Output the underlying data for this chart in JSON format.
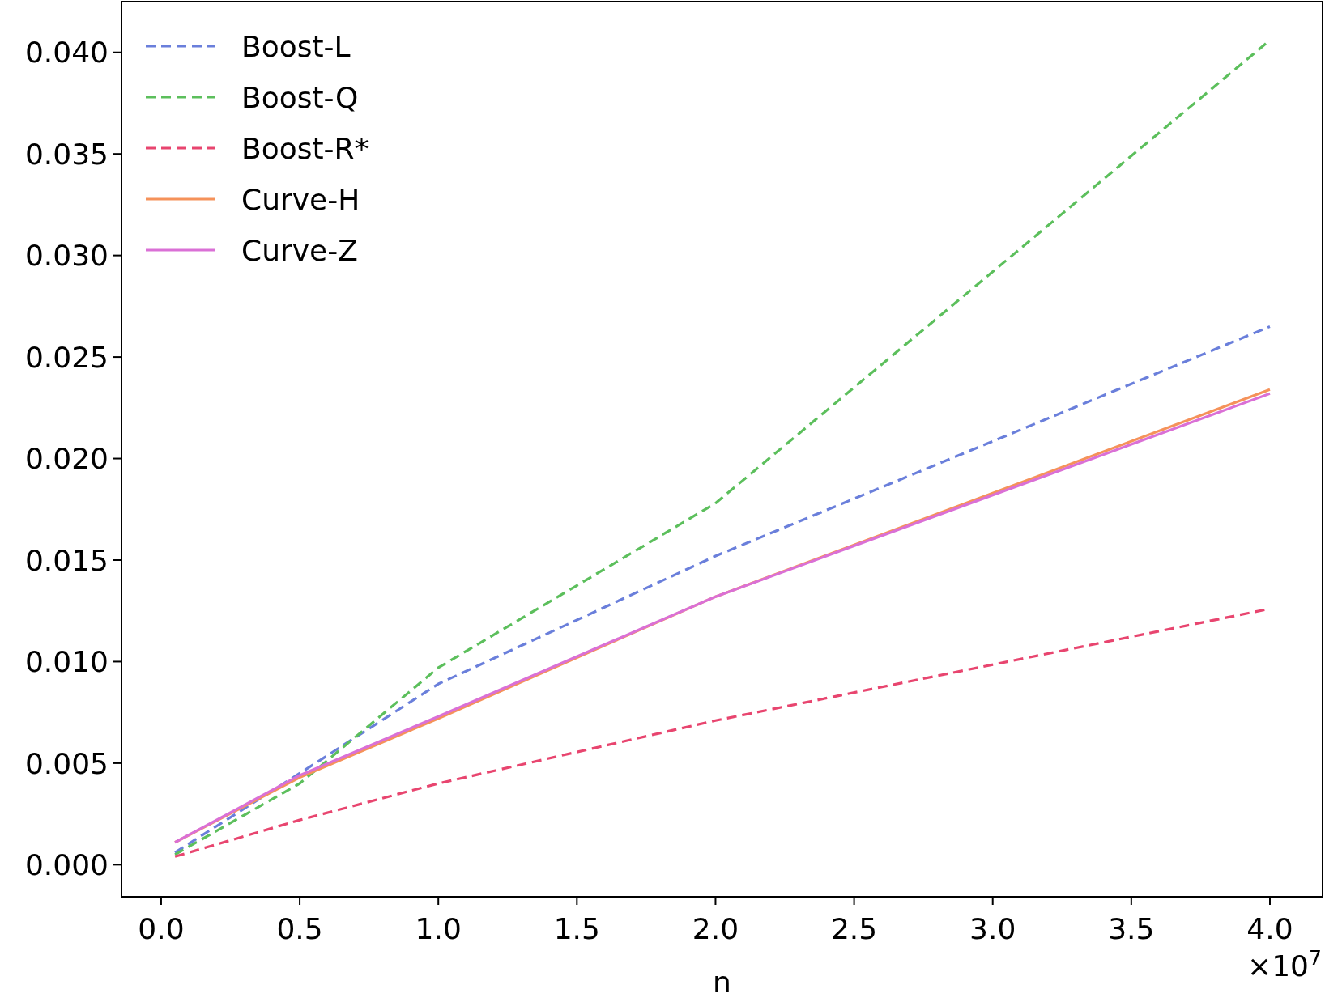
{
  "chart_data": {
    "type": "line",
    "xlabel": "n",
    "xlim": [
      -0.143,
      4.19
    ],
    "ylim": [
      -0.00158,
      0.0425
    ],
    "xticks": [
      {
        "value": 0,
        "label": "0.0"
      },
      0.5,
      {
        "value": 1,
        "label": "1.0"
      },
      1.5,
      {
        "value": 2,
        "label": "2.0"
      },
      2.5,
      {
        "value": 3,
        "label": "3.0"
      },
      3.5,
      {
        "value": 4,
        "label": "4.0"
      }
    ],
    "yticks": [
      {
        "value": 0,
        "label": "0.000"
      },
      {
        "value": 0.005,
        "label": "0.005"
      },
      {
        "value": 0.01,
        "label": "0.010"
      },
      {
        "value": 0.015,
        "label": "0.015"
      },
      {
        "value": 0.02,
        "label": "0.020"
      },
      {
        "value": 0.025,
        "label": "0.025"
      },
      {
        "value": 0.03,
        "label": "0.030"
      },
      {
        "value": 0.035,
        "label": "0.035"
      },
      {
        "value": 0.04,
        "label": "0.040"
      }
    ],
    "x": [
      0.05,
      0.5,
      1,
      2,
      4
    ],
    "annotations": [
      "×10$^{7}$"
    ],
    "legend": "top left",
    "grid": false,
    "series": [
      {
        "name": "Boost-L",
        "color": "#6a7fdb",
        "line_style": "dashed",
        "values": [
          0.0006,
          0.0045,
          0.0089,
          0.0152,
          0.0265
        ]
      },
      {
        "name": "Boost-Q",
        "color": "#5cbf5c",
        "line_style": "dashed",
        "values": [
          0.0005,
          0.004,
          0.0097,
          0.0178,
          0.0406
        ]
      },
      {
        "name": "Boost-R*",
        "color": "#e8456f",
        "line_style": "dashed",
        "values": [
          0.0004,
          0.0022,
          0.004,
          0.0071,
          0.0126
        ]
      },
      {
        "name": "Curve-H",
        "color": "#f5925a",
        "line_style": "solid",
        "values": [
          0.0011,
          0.0043,
          0.0072,
          0.0132,
          0.0234
        ]
      },
      {
        "name": "Curve-Z",
        "color": "#da70d6",
        "line_style": "solid",
        "values": [
          0.0011,
          0.0044,
          0.0073,
          0.0132,
          0.0232
        ]
      }
    ]
  }
}
